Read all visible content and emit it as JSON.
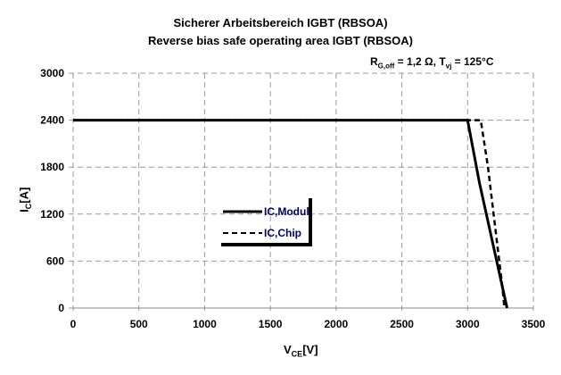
{
  "chart_data": {
    "type": "line",
    "title": "Sicherer Arbeitsbereich IGBT (RBSOA)",
    "subtitle": "Reverse bias safe operating area IGBT (RBSOA)",
    "annotation": {
      "prefix_main": "R",
      "prefix_sub": "G,off",
      "middle": " = 1,2 Ω,  T",
      "t_sub": "vj",
      "suffix": " = 125°C"
    },
    "xlabel": {
      "main": "V",
      "sub": "CE",
      "unit": "[V]"
    },
    "ylabel": {
      "main": "I",
      "sub": "C",
      "unit": "[A]"
    },
    "xlim": [
      0,
      3500
    ],
    "ylim": [
      0,
      3000
    ],
    "xticks": [
      "0",
      "500",
      "1000",
      "1500",
      "2000",
      "2500",
      "3000",
      "3500"
    ],
    "yticks": [
      "0",
      "600",
      "1200",
      "1800",
      "2400",
      "3000"
    ],
    "grid": true,
    "legend_position": "center-left",
    "series": [
      {
        "name": "IC,Modul",
        "style": "solid",
        "color": "#000000",
        "x": [
          0,
          3000,
          3090,
          3300
        ],
        "y": [
          2400,
          2400,
          1600,
          0
        ]
      },
      {
        "name": "IC,Chip",
        "style": "dashed",
        "color": "#000000",
        "x": [
          0,
          3100,
          3155,
          3265,
          3280
        ],
        "y": [
          2400,
          2400,
          1800,
          260,
          0
        ]
      }
    ],
    "legend_text_color": "#000066"
  }
}
